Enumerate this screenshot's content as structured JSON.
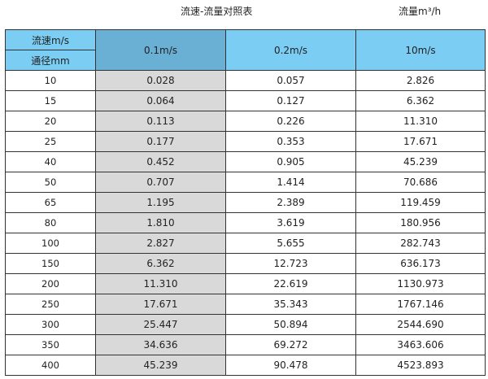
{
  "title": "流速-流量对照表",
  "unit": "流量m³/h",
  "header": {
    "velocity_label": "流速m/s",
    "diameter_label": "通径mm",
    "columns": [
      "0.1m/s",
      "0.2m/s",
      "10m/s"
    ]
  },
  "colors": {
    "header": "#7ccdf4",
    "header_first_col": "#6aafd4",
    "shaded_col": "#d9d9d9"
  },
  "rows": [
    [
      "10",
      "0.028",
      "0.057",
      "2.826"
    ],
    [
      "15",
      "0.064",
      "0.127",
      "6.362"
    ],
    [
      "20",
      "0.113",
      "0.226",
      "11.310"
    ],
    [
      "25",
      "0.177",
      "0.353",
      "17.671"
    ],
    [
      "40",
      "0.452",
      "0.905",
      "45.239"
    ],
    [
      "50",
      "0.707",
      "1.414",
      "70.686"
    ],
    [
      "65",
      "1.195",
      "2.389",
      "119.459"
    ],
    [
      "80",
      "1.810",
      "3.619",
      "180.956"
    ],
    [
      "100",
      "2.827",
      "5.655",
      "282.743"
    ],
    [
      "150",
      "6.362",
      "12.723",
      "636.173"
    ],
    [
      "200",
      "11.310",
      "22.619",
      "1130.973"
    ],
    [
      "250",
      "17.671",
      "35.343",
      "1767.146"
    ],
    [
      "300",
      "25.447",
      "50.894",
      "2544.690"
    ],
    [
      "350",
      "34.636",
      "69.272",
      "3463.606"
    ],
    [
      "400",
      "45.239",
      "90.478",
      "4523.893"
    ]
  ]
}
